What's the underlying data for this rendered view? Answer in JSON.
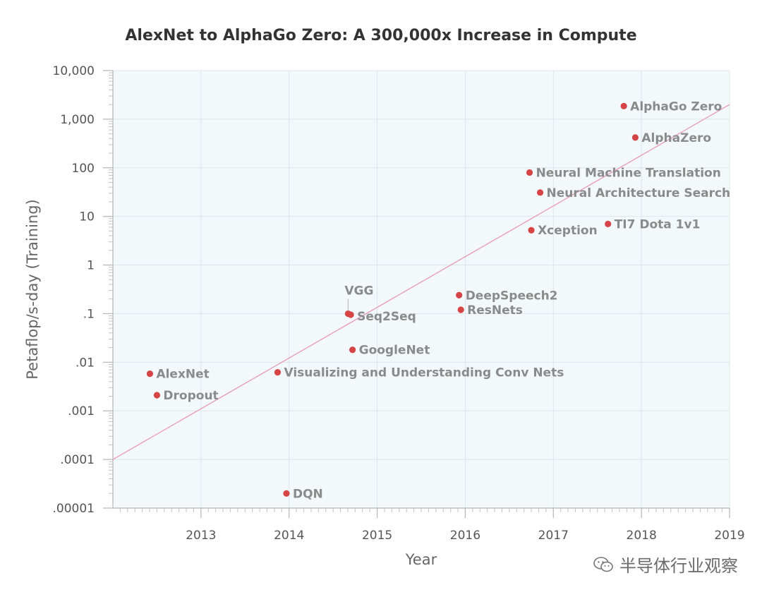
{
  "chart_data": {
    "type": "scatter",
    "title": "AlexNet to AlphaGo Zero: A 300,000x Increase in Compute",
    "xlabel": "Year",
    "ylabel": "Petaflop/s-day (Training)",
    "xlim": [
      2012.0,
      2019.0
    ],
    "ylim": [
      1e-05,
      10000
    ],
    "yscale": "log",
    "x_ticks": [
      2013,
      2014,
      2015,
      2016,
      2017,
      2018,
      2019
    ],
    "x_tick_labels": [
      "2013",
      "2014",
      "2015",
      "2016",
      "2017",
      "2018",
      "2019"
    ],
    "y_ticks": [
      1e-05,
      0.0001,
      0.001,
      0.01,
      0.1,
      1,
      10,
      100,
      1000,
      10000
    ],
    "y_tick_labels": [
      ".00001",
      ".0001",
      ".001",
      ".01",
      ".1",
      "1",
      "10",
      "100",
      "1,000",
      "10,000"
    ],
    "grid": true,
    "colors": {
      "point": "#d64545",
      "trend": "#e8a3bd",
      "plot_bg": "#f3f9fb",
      "grid": "#dde6ea"
    },
    "trend_line": {
      "x": [
        2012.0,
        2019.0
      ],
      "y": [
        0.0001,
        2000
      ]
    },
    "points": [
      {
        "name": "AlphaGo Zero",
        "x": 2017.8,
        "y": 1860
      },
      {
        "name": "AlphaZero",
        "x": 2017.93,
        "y": 420
      },
      {
        "name": "Neural Machine Translation",
        "x": 2016.73,
        "y": 80
      },
      {
        "name": "Neural Architecture Search",
        "x": 2016.85,
        "y": 31
      },
      {
        "name": "TI7 Dota 1v1",
        "x": 2017.62,
        "y": 7
      },
      {
        "name": "Xception",
        "x": 2016.75,
        "y": 5.2
      },
      {
        "name": "VGG",
        "x": 2014.67,
        "y": 0.1
      },
      {
        "name": "Seq2Seq",
        "x": 2014.7,
        "y": 0.095
      },
      {
        "name": "DeepSpeech2",
        "x": 2015.93,
        "y": 0.24
      },
      {
        "name": "ResNets",
        "x": 2015.95,
        "y": 0.12
      },
      {
        "name": "GoogleNet",
        "x": 2014.72,
        "y": 0.018
      },
      {
        "name": "AlexNet",
        "x": 2012.42,
        "y": 0.0058
      },
      {
        "name": "Visualizing and Understanding Conv Nets",
        "x": 2013.87,
        "y": 0.0062
      },
      {
        "name": "Dropout",
        "x": 2012.5,
        "y": 0.0021
      },
      {
        "name": "DQN",
        "x": 2013.97,
        "y": 2e-05
      }
    ]
  },
  "watermark": {
    "text": "半导体行业观察",
    "icon": "wechat-icon"
  }
}
